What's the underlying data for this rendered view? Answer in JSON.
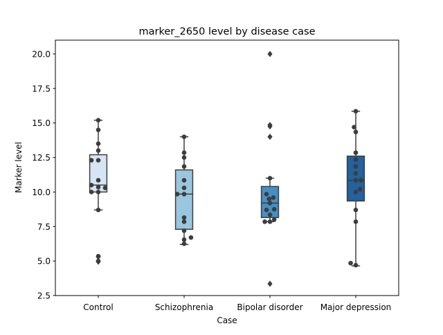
{
  "chart_data": {
    "type": "box",
    "title": "marker_2650 level by disease case",
    "xlabel": "Case",
    "ylabel": "Marker level",
    "ylim": [
      2.5,
      21.0
    ],
    "yticks": [
      2.5,
      5.0,
      7.5,
      10.0,
      12.5,
      15.0,
      17.5,
      20.0
    ],
    "ytick_labels": [
      "2.5",
      "5.0",
      "7.5",
      "10.0",
      "12.5",
      "15.0",
      "17.5",
      "20.0"
    ],
    "categories": [
      "Control",
      "Schizophrenia",
      "Bipolar disorder",
      "Major depression"
    ],
    "colors": [
      "#d6e5f3",
      "#9ac6df",
      "#4490c6",
      "#21629f"
    ],
    "grid": false,
    "boxes": [
      {
        "q1": 10.0,
        "median": 10.5,
        "q3": 12.7,
        "whisker_low": 8.7,
        "whisker_high": 15.2,
        "outliers": [
          4.95,
          5.3
        ]
      },
      {
        "q1": 7.3,
        "median": 9.85,
        "q3": 11.6,
        "whisker_low": 6.2,
        "whisker_high": 14.0,
        "outliers": []
      },
      {
        "q1": 8.15,
        "median": 9.2,
        "q3": 10.4,
        "whisker_low": 7.85,
        "whisker_high": 11.0,
        "outliers": [
          3.35,
          14.0,
          14.75,
          14.85,
          20.0
        ]
      },
      {
        "q1": 9.35,
        "median": 10.85,
        "q3": 12.6,
        "whisker_low": 4.65,
        "whisker_high": 15.85,
        "outliers": []
      }
    ],
    "points": [
      [
        {
          "y": 15.2,
          "dx": 0.0
        },
        {
          "y": 14.5,
          "dx": 0.0
        },
        {
          "y": 13.5,
          "dx": 0.0
        },
        {
          "y": 13.0,
          "dx": 0.0
        },
        {
          "y": 12.3,
          "dx": -0.08
        },
        {
          "y": 12.3,
          "dx": 0.0
        },
        {
          "y": 10.85,
          "dx": 0.0
        },
        {
          "y": 10.5,
          "dx": -0.08
        },
        {
          "y": 10.35,
          "dx": 0.0
        },
        {
          "y": 10.3,
          "dx": 0.08
        },
        {
          "y": 10.0,
          "dx": -0.08
        },
        {
          "y": 10.0,
          "dx": 0.0
        },
        {
          "y": 8.7,
          "dx": 0.0
        },
        {
          "y": 5.35,
          "dx": 0.0
        },
        {
          "y": 5.0,
          "dx": 0.0
        }
      ],
      [
        {
          "y": 14.0,
          "dx": 0.0
        },
        {
          "y": 12.85,
          "dx": 0.0
        },
        {
          "y": 12.5,
          "dx": 0.0
        },
        {
          "y": 11.85,
          "dx": 0.0
        },
        {
          "y": 10.85,
          "dx": 0.0
        },
        {
          "y": 10.3,
          "dx": 0.0
        },
        {
          "y": 9.85,
          "dx": -0.08
        },
        {
          "y": 9.85,
          "dx": 0.0
        },
        {
          "y": 8.15,
          "dx": 0.0
        },
        {
          "y": 7.85,
          "dx": 0.0
        },
        {
          "y": 7.2,
          "dx": 0.0
        },
        {
          "y": 6.7,
          "dx": 0.08
        },
        {
          "y": 6.55,
          "dx": 0.0
        },
        {
          "y": 6.25,
          "dx": 0.0
        }
      ],
      [
        {
          "y": 11.0,
          "dx": 0.0
        },
        {
          "y": 9.85,
          "dx": -0.04
        },
        {
          "y": 9.6,
          "dx": 0.04
        },
        {
          "y": 9.5,
          "dx": -0.01
        },
        {
          "y": 9.2,
          "dx": 0.0
        },
        {
          "y": 8.75,
          "dx": 0.05
        },
        {
          "y": 8.7,
          "dx": -0.04
        },
        {
          "y": 8.35,
          "dx": 0.0
        },
        {
          "y": 8.0,
          "dx": 0.05
        },
        {
          "y": 7.85,
          "dx": -0.06
        },
        {
          "y": 7.85,
          "dx": 0.0
        }
      ],
      [
        {
          "y": 15.85,
          "dx": 0.0
        },
        {
          "y": 14.7,
          "dx": -0.02
        },
        {
          "y": 14.35,
          "dx": 0.0
        },
        {
          "y": 12.85,
          "dx": 0.0
        },
        {
          "y": 12.35,
          "dx": 0.0
        },
        {
          "y": 11.85,
          "dx": 0.0
        },
        {
          "y": 11.35,
          "dx": 0.0
        },
        {
          "y": 10.85,
          "dx": 0.0
        },
        {
          "y": 10.85,
          "dx": 0.06
        },
        {
          "y": 10.2,
          "dx": 0.05
        },
        {
          "y": 10.0,
          "dx": 0.0
        },
        {
          "y": 8.7,
          "dx": 0.0
        },
        {
          "y": 7.85,
          "dx": 0.0
        },
        {
          "y": 4.85,
          "dx": -0.06
        },
        {
          "y": 4.7,
          "dx": 0.0
        }
      ]
    ]
  }
}
